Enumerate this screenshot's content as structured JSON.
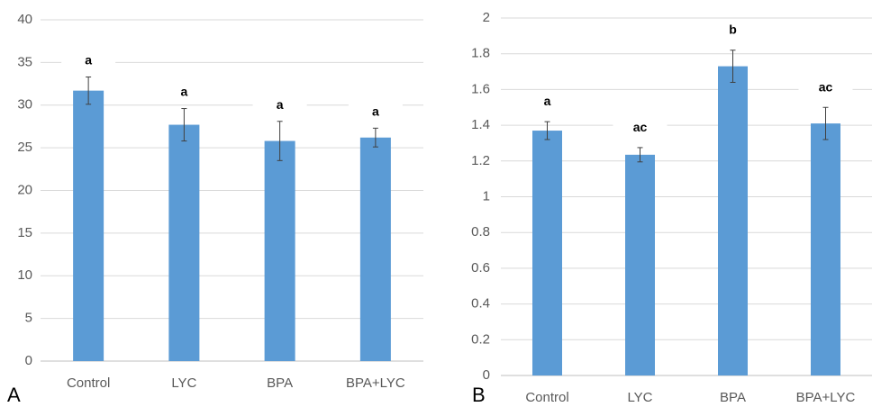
{
  "chart_data": [
    {
      "type": "bar",
      "panel_label": "A",
      "categories": [
        "Control",
        "LYC",
        "BPA",
        "BPA+LYC"
      ],
      "values": [
        31.7,
        27.7,
        25.8,
        26.2
      ],
      "errors": [
        1.6,
        1.9,
        2.3,
        1.1
      ],
      "significance": [
        "a",
        "a",
        "a",
        "a"
      ],
      "ylim": [
        0,
        40
      ],
      "yticks": [
        "0",
        "5",
        "10",
        "15",
        "20",
        "25",
        "30",
        "35",
        "40"
      ],
      "grid": true,
      "bar_color": "#5b9bd5",
      "title": "",
      "xlabel": "",
      "ylabel": ""
    },
    {
      "type": "bar",
      "panel_label": "B",
      "categories": [
        "Control",
        "LYC",
        "BPA",
        "BPA+LYC"
      ],
      "values": [
        1.37,
        1.235,
        1.73,
        1.41
      ],
      "errors": [
        0.05,
        0.04,
        0.09,
        0.09
      ],
      "significance": [
        "a",
        "ac",
        "b",
        "ac"
      ],
      "ylim": [
        0,
        2
      ],
      "yticks": [
        "0",
        "0.2",
        "0.4",
        "0.6",
        "0.8",
        "1",
        "1.2",
        "1.4",
        "1.6",
        "1.8",
        "2"
      ],
      "grid": true,
      "bar_color": "#5b9bd5",
      "title": "",
      "xlabel": "",
      "ylabel": ""
    }
  ]
}
